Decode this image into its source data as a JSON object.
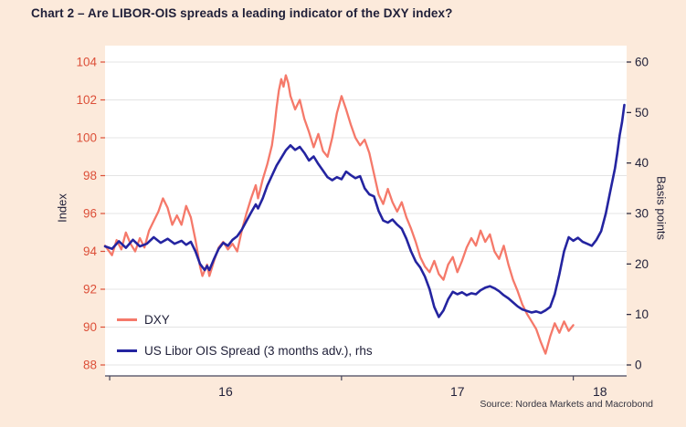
{
  "colors": {
    "background": "#fceadb",
    "plot_bg": "#ffffff",
    "grid": "#e4e4e4",
    "dxy": "#f5796a",
    "ois": "#2424a0",
    "left_tick": "#dc4f38",
    "right_tick": "#1f1f38",
    "text": "#1f1f38",
    "axis_bottom": "#44445a"
  },
  "footer": {
    "source": "Source: Nordea Markets and Macrobond"
  },
  "chart_data": {
    "type": "line",
    "title": "Chart 2 – Are LIBOR-OIS spreads a leading indicator of the DXY index?",
    "legend_position": "lower left",
    "grid": true,
    "x_axis": {
      "range": [
        2015.98,
        2018.23
      ],
      "labels": [
        {
          "text": "16",
          "year": 2016
        },
        {
          "text": "17",
          "year": 2017
        },
        {
          "text": "18",
          "year": 2018
        }
      ]
    },
    "y_left": {
      "label": "Index",
      "range": [
        88,
        104
      ],
      "ticks": [
        88,
        90,
        92,
        94,
        96,
        98,
        100,
        102,
        104
      ]
    },
    "y_right": {
      "label": "Basis points",
      "range": [
        0,
        60
      ],
      "ticks": [
        0,
        10,
        20,
        30,
        40,
        50,
        60
      ]
    },
    "series": [
      {
        "name": "DXY",
        "axis": "left",
        "color_key": "dxy",
        "points": [
          [
            2015.98,
            94.3
          ],
          [
            2016.01,
            93.8
          ],
          [
            2016.03,
            94.6
          ],
          [
            2016.05,
            94.1
          ],
          [
            2016.07,
            95.0
          ],
          [
            2016.09,
            94.4
          ],
          [
            2016.11,
            94.0
          ],
          [
            2016.13,
            94.7
          ],
          [
            2016.15,
            94.2
          ],
          [
            2016.17,
            95.1
          ],
          [
            2016.19,
            95.6
          ],
          [
            2016.21,
            96.1
          ],
          [
            2016.23,
            96.8
          ],
          [
            2016.25,
            96.3
          ],
          [
            2016.27,
            95.4
          ],
          [
            2016.29,
            95.9
          ],
          [
            2016.31,
            95.4
          ],
          [
            2016.33,
            96.4
          ],
          [
            2016.35,
            95.8
          ],
          [
            2016.37,
            94.6
          ],
          [
            2016.39,
            93.2
          ],
          [
            2016.4,
            92.7
          ],
          [
            2016.42,
            93.3
          ],
          [
            2016.43,
            92.7
          ],
          [
            2016.45,
            93.5
          ],
          [
            2016.47,
            94.2
          ],
          [
            2016.49,
            94.5
          ],
          [
            2016.51,
            94.1
          ],
          [
            2016.53,
            94.4
          ],
          [
            2016.55,
            94.0
          ],
          [
            2016.57,
            95.1
          ],
          [
            2016.59,
            96.0
          ],
          [
            2016.61,
            96.8
          ],
          [
            2016.63,
            97.5
          ],
          [
            2016.64,
            96.8
          ],
          [
            2016.66,
            97.8
          ],
          [
            2016.68,
            98.6
          ],
          [
            2016.7,
            99.6
          ],
          [
            2016.71,
            100.5
          ],
          [
            2016.72,
            101.6
          ],
          [
            2016.73,
            102.5
          ],
          [
            2016.74,
            103.1
          ],
          [
            2016.75,
            102.7
          ],
          [
            2016.76,
            103.3
          ],
          [
            2016.77,
            102.9
          ],
          [
            2016.78,
            102.2
          ],
          [
            2016.8,
            101.5
          ],
          [
            2016.82,
            102.0
          ],
          [
            2016.84,
            101.0
          ],
          [
            2016.86,
            100.3
          ],
          [
            2016.88,
            99.5
          ],
          [
            2016.9,
            100.2
          ],
          [
            2016.92,
            99.3
          ],
          [
            2016.94,
            99.0
          ],
          [
            2016.96,
            100.0
          ],
          [
            2016.98,
            101.3
          ],
          [
            2017.0,
            102.2
          ],
          [
            2017.02,
            101.5
          ],
          [
            2017.04,
            100.7
          ],
          [
            2017.06,
            100.0
          ],
          [
            2017.08,
            99.6
          ],
          [
            2017.1,
            99.9
          ],
          [
            2017.12,
            99.2
          ],
          [
            2017.14,
            98.1
          ],
          [
            2017.16,
            97.0
          ],
          [
            2017.18,
            96.5
          ],
          [
            2017.2,
            97.3
          ],
          [
            2017.22,
            96.6
          ],
          [
            2017.24,
            96.1
          ],
          [
            2017.26,
            96.6
          ],
          [
            2017.28,
            95.8
          ],
          [
            2017.3,
            95.2
          ],
          [
            2017.32,
            94.5
          ],
          [
            2017.34,
            93.7
          ],
          [
            2017.36,
            93.2
          ],
          [
            2017.38,
            92.9
          ],
          [
            2017.4,
            93.5
          ],
          [
            2017.42,
            92.8
          ],
          [
            2017.44,
            92.5
          ],
          [
            2017.46,
            93.3
          ],
          [
            2017.48,
            93.7
          ],
          [
            2017.5,
            92.9
          ],
          [
            2017.52,
            93.5
          ],
          [
            2017.54,
            94.2
          ],
          [
            2017.56,
            94.7
          ],
          [
            2017.58,
            94.3
          ],
          [
            2017.6,
            95.1
          ],
          [
            2017.62,
            94.5
          ],
          [
            2017.64,
            94.9
          ],
          [
            2017.66,
            94.0
          ],
          [
            2017.68,
            93.6
          ],
          [
            2017.7,
            94.3
          ],
          [
            2017.72,
            93.3
          ],
          [
            2017.74,
            92.5
          ],
          [
            2017.76,
            91.9
          ],
          [
            2017.78,
            91.2
          ],
          [
            2017.8,
            90.7
          ],
          [
            2017.82,
            90.3
          ],
          [
            2017.84,
            89.9
          ],
          [
            2017.86,
            89.2
          ],
          [
            2017.88,
            88.6
          ],
          [
            2017.9,
            89.5
          ],
          [
            2017.92,
            90.2
          ],
          [
            2017.94,
            89.7
          ],
          [
            2017.96,
            90.3
          ],
          [
            2017.98,
            89.8
          ],
          [
            2018.0,
            90.1
          ]
        ]
      },
      {
        "name": "US Libor OIS Spread (3 months adv.), rhs",
        "axis": "right",
        "color_key": "ois",
        "points": [
          [
            2015.98,
            23.5
          ],
          [
            2016.01,
            23.0
          ],
          [
            2016.04,
            24.5
          ],
          [
            2016.07,
            23.2
          ],
          [
            2016.1,
            24.8
          ],
          [
            2016.13,
            23.5
          ],
          [
            2016.16,
            24.0
          ],
          [
            2016.19,
            25.3
          ],
          [
            2016.22,
            24.2
          ],
          [
            2016.25,
            25.0
          ],
          [
            2016.28,
            24.0
          ],
          [
            2016.31,
            24.6
          ],
          [
            2016.33,
            23.8
          ],
          [
            2016.35,
            24.4
          ],
          [
            2016.37,
            22.5
          ],
          [
            2016.39,
            20.0
          ],
          [
            2016.41,
            18.8
          ],
          [
            2016.42,
            19.6
          ],
          [
            2016.43,
            18.8
          ],
          [
            2016.45,
            21.0
          ],
          [
            2016.47,
            23.0
          ],
          [
            2016.49,
            24.2
          ],
          [
            2016.51,
            23.6
          ],
          [
            2016.53,
            24.8
          ],
          [
            2016.55,
            25.5
          ],
          [
            2016.57,
            26.8
          ],
          [
            2016.59,
            28.5
          ],
          [
            2016.61,
            30.2
          ],
          [
            2016.63,
            31.8
          ],
          [
            2016.64,
            31.0
          ],
          [
            2016.66,
            33.0
          ],
          [
            2016.68,
            35.5
          ],
          [
            2016.7,
            37.5
          ],
          [
            2016.72,
            39.5
          ],
          [
            2016.74,
            41.0
          ],
          [
            2016.76,
            42.5
          ],
          [
            2016.78,
            43.5
          ],
          [
            2016.8,
            42.6
          ],
          [
            2016.82,
            43.2
          ],
          [
            2016.84,
            42.0
          ],
          [
            2016.86,
            40.5
          ],
          [
            2016.88,
            41.3
          ],
          [
            2016.9,
            39.8
          ],
          [
            2016.92,
            38.5
          ],
          [
            2016.94,
            37.2
          ],
          [
            2016.96,
            36.6
          ],
          [
            2016.98,
            37.2
          ],
          [
            2017.0,
            36.8
          ],
          [
            2017.02,
            38.3
          ],
          [
            2017.04,
            37.6
          ],
          [
            2017.06,
            37.0
          ],
          [
            2017.08,
            37.4
          ],
          [
            2017.1,
            35.0
          ],
          [
            2017.12,
            33.8
          ],
          [
            2017.14,
            33.4
          ],
          [
            2017.16,
            30.5
          ],
          [
            2017.18,
            28.6
          ],
          [
            2017.2,
            28.2
          ],
          [
            2017.22,
            28.8
          ],
          [
            2017.24,
            27.8
          ],
          [
            2017.26,
            27.0
          ],
          [
            2017.28,
            25.0
          ],
          [
            2017.3,
            22.5
          ],
          [
            2017.32,
            20.5
          ],
          [
            2017.34,
            19.3
          ],
          [
            2017.36,
            17.5
          ],
          [
            2017.38,
            15.0
          ],
          [
            2017.4,
            11.5
          ],
          [
            2017.42,
            9.5
          ],
          [
            2017.44,
            10.8
          ],
          [
            2017.46,
            13.0
          ],
          [
            2017.48,
            14.5
          ],
          [
            2017.5,
            14.0
          ],
          [
            2017.52,
            14.4
          ],
          [
            2017.54,
            13.8
          ],
          [
            2017.56,
            14.2
          ],
          [
            2017.58,
            14.0
          ],
          [
            2017.6,
            14.8
          ],
          [
            2017.62,
            15.3
          ],
          [
            2017.64,
            15.6
          ],
          [
            2017.66,
            15.2
          ],
          [
            2017.68,
            14.6
          ],
          [
            2017.7,
            13.8
          ],
          [
            2017.72,
            13.2
          ],
          [
            2017.74,
            12.4
          ],
          [
            2017.76,
            11.6
          ],
          [
            2017.78,
            11.0
          ],
          [
            2017.8,
            10.7
          ],
          [
            2017.82,
            10.4
          ],
          [
            2017.84,
            10.6
          ],
          [
            2017.86,
            10.3
          ],
          [
            2017.88,
            10.8
          ],
          [
            2017.9,
            11.5
          ],
          [
            2017.92,
            14.0
          ],
          [
            2017.94,
            18.0
          ],
          [
            2017.96,
            22.5
          ],
          [
            2017.98,
            25.3
          ],
          [
            2018.0,
            24.6
          ],
          [
            2018.02,
            25.2
          ],
          [
            2018.04,
            24.4
          ],
          [
            2018.06,
            24.0
          ],
          [
            2018.08,
            23.6
          ],
          [
            2018.1,
            24.8
          ],
          [
            2018.12,
            26.5
          ],
          [
            2018.14,
            30.0
          ],
          [
            2018.16,
            34.5
          ],
          [
            2018.18,
            39.0
          ],
          [
            2018.19,
            42.0
          ],
          [
            2018.2,
            45.5
          ],
          [
            2018.21,
            48.0
          ],
          [
            2018.22,
            51.5
          ]
        ]
      }
    ]
  }
}
